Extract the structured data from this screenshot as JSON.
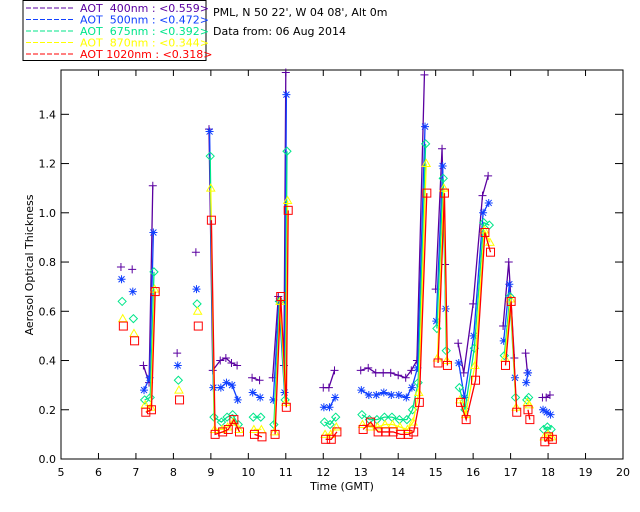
{
  "chart_data": {
    "type": "line",
    "title_lines": [
      "PML, N 50 22', W 04 08', Alt 0m",
      "Data from: 06 Aug 2014"
    ],
    "xlabel": "Time (GMT)",
    "ylabel": "Aerosol Optical Thickness",
    "xlim": [
      5,
      20
    ],
    "ylim": [
      0,
      1.58
    ],
    "xticks": [
      "5",
      "6",
      "7",
      "8",
      "9",
      "10",
      "11",
      "12",
      "13",
      "14",
      "15",
      "16",
      "17",
      "18",
      "19",
      "20"
    ],
    "yticks": [
      "0.0",
      "0.2",
      "0.4",
      "0.6",
      "0.8",
      "1.0",
      "1.2",
      "1.4"
    ],
    "legend_placement": "top-left",
    "series": [
      {
        "name": "AOT  400nm : <0.559>",
        "color": "#5a00a0",
        "marker": "plus"
      },
      {
        "name": "AOT  500nm : <0.472>",
        "color": "#1040ff",
        "marker": "asterisk"
      },
      {
        "name": "AOT  675nm : <0.392>",
        "color": "#00e68a",
        "marker": "diamond"
      },
      {
        "name": "AOT  870nm : <0.344>",
        "color": "#ffff00",
        "marker": "triangle"
      },
      {
        "name": "AOT 1020nm : <0.318>",
        "color": "#ff0000",
        "marker": "square"
      }
    ],
    "segments": [
      {
        "x": [
          6.6
        ],
        "values": [
          [
            0.78
          ],
          [
            0.73
          ],
          [
            0.64
          ],
          [
            0.57
          ],
          [
            0.54
          ]
        ]
      },
      {
        "x": [
          6.9
        ],
        "values": [
          [
            0.77
          ],
          [
            0.68
          ],
          [
            0.57
          ],
          [
            0.51
          ],
          [
            0.48
          ]
        ]
      },
      {
        "x": [
          7.2,
          7.35,
          7.45
        ],
        "values": [
          [
            0.38,
            0.31,
            1.11
          ],
          [
            0.28,
            0.33,
            0.92
          ],
          [
            0.24,
            0.25,
            0.76
          ],
          [
            0.22,
            0.21,
            0.69
          ],
          [
            0.19,
            0.2,
            0.68
          ]
        ]
      },
      {
        "x": [
          8.1
        ],
        "values": [
          [
            0.43
          ],
          [
            0.38
          ],
          [
            0.32
          ],
          [
            0.28
          ],
          [
            0.24
          ]
        ]
      },
      {
        "x": [
          8.6
        ],
        "values": [
          [
            0.84
          ],
          [
            0.69
          ],
          [
            0.63
          ],
          [
            0.6
          ],
          [
            0.54
          ]
        ]
      },
      {
        "x": [
          8.95,
          9.05,
          9.25,
          9.4,
          9.55,
          9.7
        ],
        "values": [
          [
            1.34,
            0.36,
            0.4,
            0.41,
            0.39,
            0.38
          ],
          [
            1.33,
            0.29,
            0.29,
            0.31,
            0.3,
            0.24
          ],
          [
            1.23,
            0.17,
            0.15,
            0.17,
            0.18,
            0.14
          ],
          [
            1.1,
            0.12,
            0.12,
            0.13,
            0.15,
            0.12
          ],
          [
            0.97,
            0.1,
            0.11,
            0.12,
            0.16,
            0.11
          ]
        ]
      },
      {
        "x": [
          10.1,
          10.3
        ],
        "values": [
          [
            0.33,
            0.32
          ],
          [
            0.27,
            0.25
          ],
          [
            0.17,
            0.17
          ],
          [
            0.12,
            0.12
          ],
          [
            0.1,
            0.09
          ]
        ]
      },
      {
        "x": [
          10.65,
          10.8,
          10.95,
          11.0
        ],
        "values": [
          [
            0.33,
            0.66,
            0.38,
            1.57
          ],
          [
            0.24,
            0.64,
            0.27,
            1.48
          ],
          [
            0.14,
            0.64,
            0.24,
            1.25
          ],
          [
            0.11,
            0.64,
            0.23,
            1.05
          ],
          [
            0.1,
            0.66,
            0.21,
            1.01
          ]
        ]
      },
      {
        "x": [
          12.0,
          12.15,
          12.3
        ],
        "values": [
          [
            0.29,
            0.29,
            0.36
          ],
          [
            0.21,
            0.21,
            0.25
          ],
          [
            0.15,
            0.14,
            0.17
          ],
          [
            0.1,
            0.1,
            0.13
          ],
          [
            0.08,
            0.08,
            0.11
          ]
        ]
      },
      {
        "x": [
          13.0,
          13.2,
          13.4,
          13.6,
          13.8,
          14.0,
          14.2,
          14.35,
          14.5,
          14.7
        ],
        "values": [
          [
            0.36,
            0.37,
            0.35,
            0.35,
            0.35,
            0.34,
            0.33,
            0.36,
            0.4,
            1.56
          ],
          [
            0.28,
            0.26,
            0.26,
            0.27,
            0.26,
            0.26,
            0.25,
            0.29,
            0.37,
            1.35
          ],
          [
            0.18,
            0.16,
            0.16,
            0.17,
            0.17,
            0.16,
            0.16,
            0.2,
            0.31,
            1.28
          ],
          [
            0.14,
            0.13,
            0.13,
            0.14,
            0.14,
            0.13,
            0.12,
            0.15,
            0.27,
            1.2
          ],
          [
            0.12,
            0.15,
            0.11,
            0.11,
            0.11,
            0.1,
            0.1,
            0.11,
            0.23,
            1.08
          ]
        ]
      },
      {
        "x": [
          15.0,
          15.17,
          15.25
        ],
        "values": [
          [
            0.69,
            1.26,
            0.79
          ],
          [
            0.56,
            1.19,
            0.61
          ],
          [
            0.53,
            1.14,
            0.44
          ],
          [
            0.41,
            1.1,
            0.4
          ],
          [
            0.39,
            1.08,
            0.38
          ]
        ]
      },
      {
        "x": [
          15.6,
          15.75,
          16.0,
          16.25,
          16.4
        ],
        "values": [
          [
            0.47,
            0.35,
            0.63,
            1.07,
            1.15
          ],
          [
            0.39,
            0.25,
            0.5,
            1.0,
            1.04
          ],
          [
            0.29,
            0.2,
            0.45,
            0.96,
            0.95
          ],
          [
            0.24,
            0.18,
            0.38,
            0.93,
            0.88
          ],
          [
            0.23,
            0.16,
            0.32,
            0.92,
            0.84
          ]
        ]
      },
      {
        "x": [
          16.8,
          16.95,
          17.1
        ],
        "values": [
          [
            0.54,
            0.8,
            0.41
          ],
          [
            0.48,
            0.71,
            0.33
          ],
          [
            0.42,
            0.66,
            0.25
          ],
          [
            0.41,
            0.65,
            0.21
          ],
          [
            0.38,
            0.64,
            0.19
          ]
        ]
      },
      {
        "x": [
          17.4,
          17.45
        ],
        "values": [
          [
            0.43,
            0.35
          ],
          [
            0.31,
            0.35
          ],
          [
            0.24,
            0.25
          ],
          [
            0.23,
            0.22
          ],
          [
            0.2,
            0.16
          ]
        ]
      },
      {
        "x": [
          17.85,
          17.95,
          18.05
        ],
        "values": [
          [
            0.25,
            0.25,
            0.26
          ],
          [
            0.2,
            0.19,
            0.18
          ],
          [
            0.12,
            0.13,
            0.12
          ],
          [
            0.09,
            0.1,
            0.09
          ],
          [
            0.07,
            0.09,
            0.08
          ]
        ]
      }
    ]
  }
}
